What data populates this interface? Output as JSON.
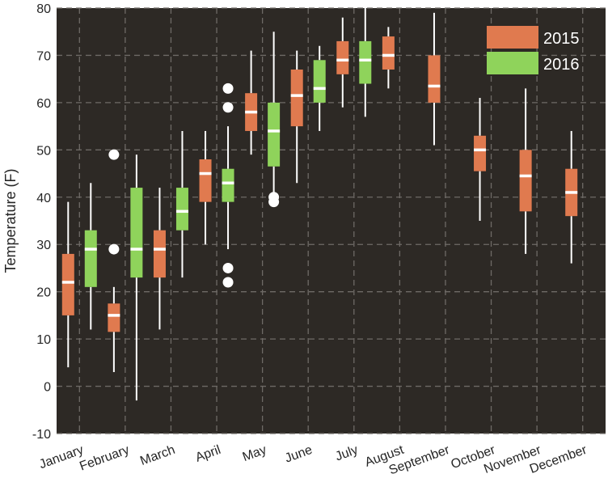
{
  "chart_data": {
    "type": "box",
    "ylabel": "Temperature (F)",
    "ylim": [
      -10,
      80
    ],
    "yticks": [
      -10,
      0,
      10,
      20,
      30,
      40,
      50,
      60,
      70,
      80
    ],
    "categories": [
      "January",
      "February",
      "March",
      "April",
      "May",
      "June",
      "July",
      "August",
      "September",
      "October",
      "November",
      "December"
    ],
    "grid": true,
    "legend_position": "top-right",
    "colors": {
      "background": "#2d2925",
      "grid": "#6e6a66",
      "box_2015": "#e07a4f",
      "box_2016": "#8fd35b",
      "median": "#ffffff",
      "whisker": "#ffffff",
      "outlier": "#ffffff"
    },
    "series": [
      {
        "name": "2015",
        "boxes": [
          {
            "category": "January",
            "whisker_low": 4,
            "q1": 15,
            "median": 22,
            "q3": 28,
            "whisker_high": 39,
            "outliers": []
          },
          {
            "category": "February",
            "whisker_low": 3,
            "q1": 11.5,
            "median": 15,
            "q3": 17.5,
            "whisker_high": 21,
            "outliers": [
              29,
              49
            ]
          },
          {
            "category": "March",
            "whisker_low": 12,
            "q1": 23,
            "median": 29,
            "q3": 33,
            "whisker_high": 42,
            "outliers": []
          },
          {
            "category": "April",
            "whisker_low": 30,
            "q1": 39,
            "median": 45,
            "q3": 48,
            "whisker_high": 54,
            "outliers": []
          },
          {
            "category": "May",
            "whisker_low": 49,
            "q1": 54,
            "median": 58,
            "q3": 62,
            "whisker_high": 71,
            "outliers": []
          },
          {
            "category": "June",
            "whisker_low": 43,
            "q1": 55,
            "median": 61.5,
            "q3": 67,
            "whisker_high": 71,
            "outliers": []
          },
          {
            "category": "July",
            "whisker_low": 59,
            "q1": 66,
            "median": 69,
            "q3": 73,
            "whisker_high": 78,
            "outliers": []
          },
          {
            "category": "August",
            "whisker_low": 63,
            "q1": 67,
            "median": 70,
            "q3": 74,
            "whisker_high": 76,
            "outliers": []
          },
          {
            "category": "September",
            "whisker_low": 51,
            "q1": 60,
            "median": 63.5,
            "q3": 70,
            "whisker_high": 79,
            "outliers": []
          },
          {
            "category": "October",
            "whisker_low": 35,
            "q1": 45.5,
            "median": 50,
            "q3": 53,
            "whisker_high": 61,
            "outliers": []
          },
          {
            "category": "November",
            "whisker_low": 28,
            "q1": 37,
            "median": 44.5,
            "q3": 50,
            "whisker_high": 63,
            "outliers": []
          },
          {
            "category": "December",
            "whisker_low": 26,
            "q1": 36,
            "median": 41,
            "q3": 46,
            "whisker_high": 54,
            "outliers": []
          }
        ]
      },
      {
        "name": "2016",
        "boxes": [
          {
            "category": "January",
            "whisker_low": 12,
            "q1": 21,
            "median": 29,
            "q3": 33,
            "whisker_high": 43,
            "outliers": []
          },
          {
            "category": "February",
            "whisker_low": -3,
            "q1": 23,
            "median": 29,
            "q3": 42,
            "whisker_high": 49,
            "outliers": []
          },
          {
            "category": "March",
            "whisker_low": 23,
            "q1": 33,
            "median": 37,
            "q3": 42,
            "whisker_high": 54,
            "outliers": []
          },
          {
            "category": "April",
            "whisker_low": 29,
            "q1": 39,
            "median": 43,
            "q3": 46,
            "whisker_high": 55,
            "outliers": [
              22,
              25,
              59,
              63
            ]
          },
          {
            "category": "May",
            "whisker_low": 41,
            "q1": 46.5,
            "median": 54,
            "q3": 60,
            "whisker_high": 75,
            "outliers": [
              39,
              40
            ]
          },
          {
            "category": "June",
            "whisker_low": 54,
            "q1": 60,
            "median": 63,
            "q3": 69,
            "whisker_high": 72,
            "outliers": []
          },
          {
            "category": "July",
            "whisker_low": 57,
            "q1": 64,
            "median": 69,
            "q3": 73,
            "whisker_high": 80,
            "outliers": []
          }
        ]
      }
    ]
  }
}
